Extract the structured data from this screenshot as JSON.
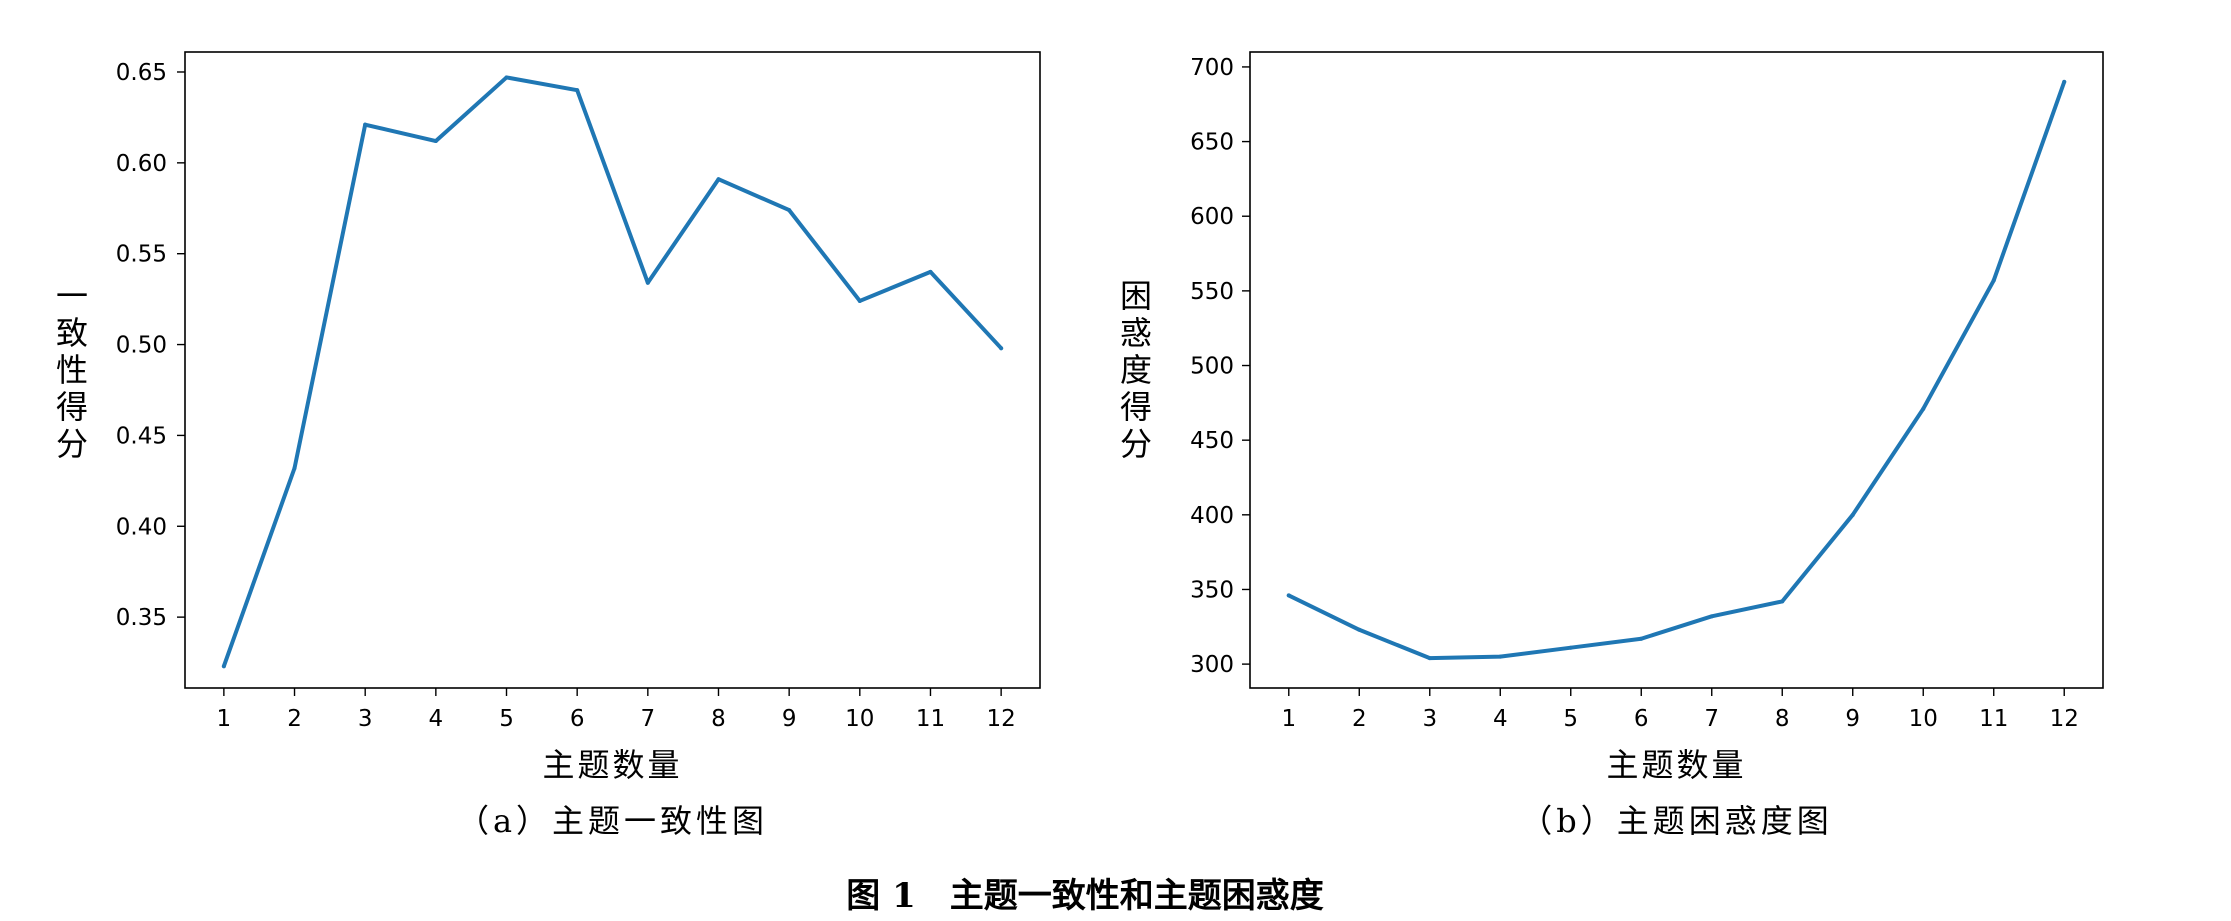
{
  "figure_caption": "图 1　主题一致性和主题困惑度",
  "chart_data": [
    {
      "type": "line",
      "subcaption": "（a）主题一致性图",
      "xlabel": "主题数量",
      "ylabel": "一致性得分",
      "x": [
        1,
        2,
        3,
        4,
        5,
        6,
        7,
        8,
        9,
        10,
        11,
        12
      ],
      "xticks": [
        "1",
        "2",
        "3",
        "4",
        "5",
        "6",
        "7",
        "8",
        "9",
        "10",
        "11",
        "12"
      ],
      "xlim": [
        0.45,
        12.55
      ],
      "ylim": [
        0.311,
        0.661
      ],
      "yticks": [
        0.35,
        0.4,
        0.45,
        0.5,
        0.55,
        0.6,
        0.65
      ],
      "ytick_labels": [
        "0.35",
        "0.40",
        "0.45",
        "0.50",
        "0.55",
        "0.60",
        "0.65"
      ],
      "series": [
        {
          "color": "#1f77b4",
          "values": [
            0.323,
            0.432,
            0.621,
            0.612,
            0.647,
            0.64,
            0.534,
            0.591,
            0.574,
            0.524,
            0.54,
            0.498
          ]
        }
      ],
      "grid": false
    },
    {
      "type": "line",
      "subcaption": "（b）主题困惑度图",
      "xlabel": "主题数量",
      "ylabel": "困惑度得分",
      "x": [
        1,
        2,
        3,
        4,
        5,
        6,
        7,
        8,
        9,
        10,
        11,
        12
      ],
      "xticks": [
        "1",
        "2",
        "3",
        "4",
        "5",
        "6",
        "7",
        "8",
        "9",
        "10",
        "11",
        "12"
      ],
      "xlim": [
        0.45,
        12.55
      ],
      "ylim": [
        284,
        710
      ],
      "yticks": [
        300,
        350,
        400,
        450,
        500,
        550,
        600,
        650,
        700
      ],
      "ytick_labels": [
        "300",
        "350",
        "400",
        "450",
        "500",
        "550",
        "600",
        "650",
        "700"
      ],
      "series": [
        {
          "color": "#1f77b4",
          "values": [
            346,
            323,
            304,
            305,
            311,
            317,
            332,
            342,
            400,
            471,
            557,
            690
          ]
        }
      ],
      "grid": false
    }
  ]
}
